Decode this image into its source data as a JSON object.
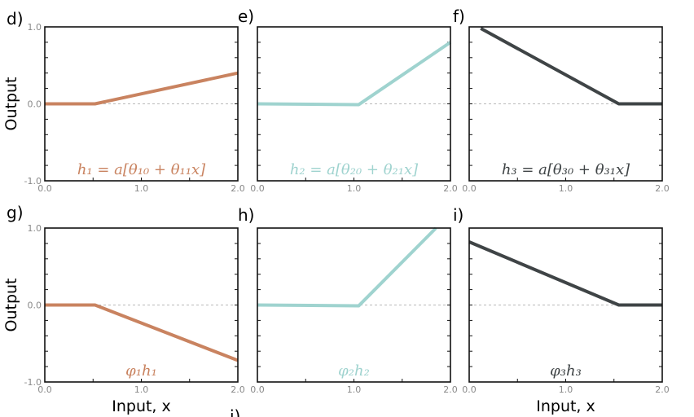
{
  "chart_data": [
    {
      "panel": "d)",
      "type": "line",
      "formula": "h₁ = a[θ₁₀ + θ₁₁x]",
      "color": "#c98360",
      "x": [
        0.0,
        0.52,
        2.0
      ],
      "y": [
        0.0,
        0.0,
        0.4
      ],
      "xlim": [
        0,
        2
      ],
      "ylim": [
        -1,
        1
      ],
      "xticks": [
        "0.0",
        "1.0",
        "2.0"
      ],
      "yticks": [
        "1.0",
        "0.0",
        "-1.0"
      ],
      "ylabel": "Output",
      "xlabel": ""
    },
    {
      "panel": "e)",
      "type": "line",
      "formula": "h₂ = a[θ₂₀ + θ₂₁x]",
      "color": "#9fd3cf",
      "x": [
        0.0,
        1.05,
        2.0
      ],
      "y": [
        0.0,
        -0.01,
        0.8
      ],
      "xlim": [
        0,
        2
      ],
      "ylim": [
        -1,
        1
      ],
      "xticks": [
        "0.0",
        "1.0",
        "2.0"
      ],
      "yticks": [],
      "ylabel": "",
      "xlabel": ""
    },
    {
      "panel": "f)",
      "type": "line",
      "formula": "h₃ = a[θ₃₀ + θ₃₁x]",
      "color": "#3f4446",
      "x": [
        0.12,
        1.55,
        2.0
      ],
      "y": [
        0.98,
        0.0,
        0.0
      ],
      "xlim": [
        0,
        2
      ],
      "ylim": [
        -1,
        1
      ],
      "xticks": [
        "0.0",
        "1.0",
        "2.0"
      ],
      "yticks": [],
      "ylabel": "",
      "xlabel": ""
    },
    {
      "panel": "g)",
      "type": "line",
      "formula": "φ₁h₁",
      "color": "#c98360",
      "x": [
        0.0,
        0.52,
        2.0
      ],
      "y": [
        0.0,
        0.0,
        -0.72
      ],
      "xlim": [
        0,
        2
      ],
      "ylim": [
        -1,
        1
      ],
      "xticks": [
        "0.0",
        "1.0",
        "2.0"
      ],
      "yticks": [
        "1.0",
        "0.0",
        "-1.0"
      ],
      "ylabel": "Output",
      "xlabel": "Input, x"
    },
    {
      "panel": "h)",
      "type": "line",
      "formula": "φ₂h₂",
      "color": "#9fd3cf",
      "x": [
        0.0,
        1.05,
        1.85
      ],
      "y": [
        0.0,
        -0.01,
        1.0
      ],
      "xlim": [
        0,
        2
      ],
      "ylim": [
        -1,
        1
      ],
      "xticks": [
        "0.0",
        "1.0",
        "2.0"
      ],
      "yticks": [],
      "ylabel": "",
      "xlabel": ""
    },
    {
      "panel": "i)",
      "type": "line",
      "formula": "φ₃h₃",
      "color": "#3f4446",
      "x": [
        0.0,
        1.55,
        2.0
      ],
      "y": [
        0.82,
        0.0,
        0.0
      ],
      "xlim": [
        0,
        2
      ],
      "ylim": [
        -1,
        1
      ],
      "xticks": [
        "0.0",
        "1.0",
        "2.0"
      ],
      "yticks": [],
      "ylabel": "",
      "xlabel": "Input, x"
    }
  ],
  "partial_bottom_letter": "j)"
}
